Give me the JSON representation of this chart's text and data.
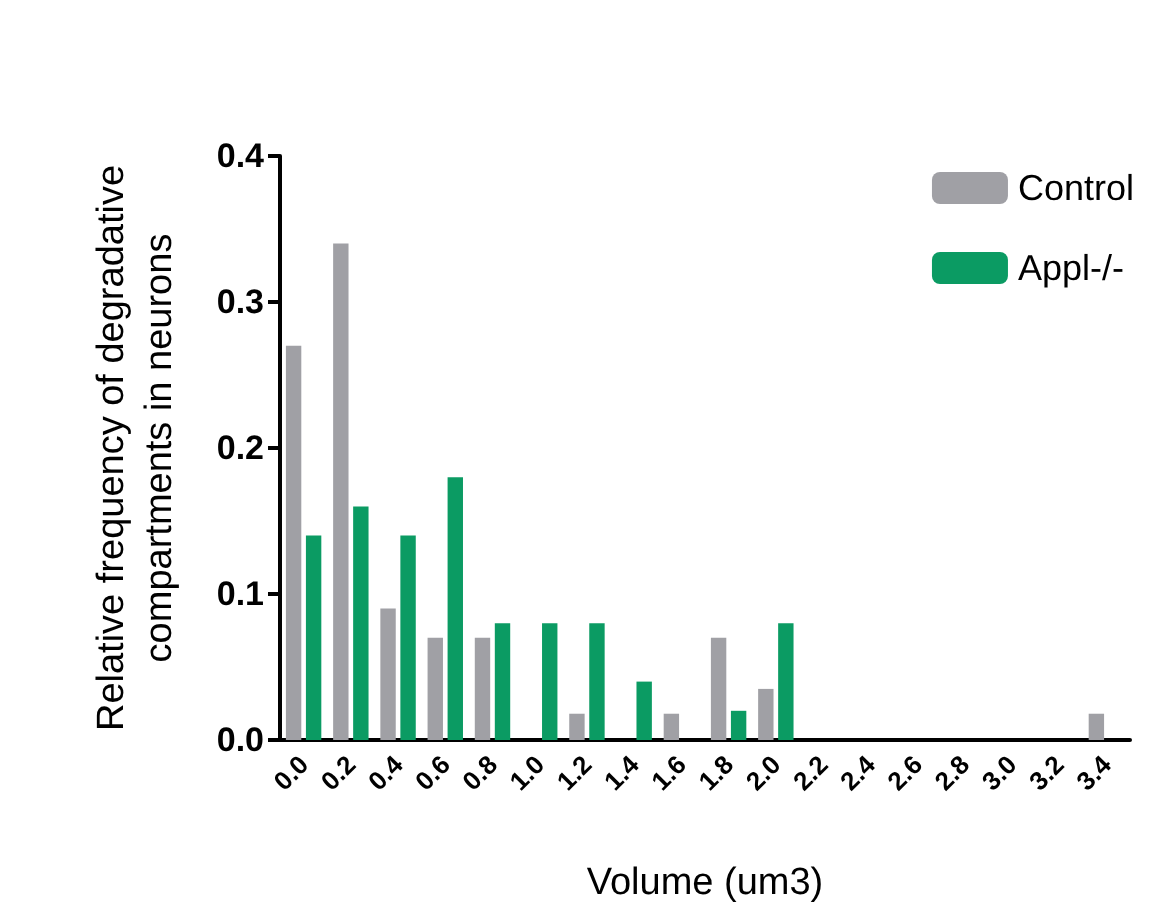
{
  "chart_data": {
    "type": "bar",
    "xlabel": "Volume (um3)",
    "ylabel": "Relative frequency of degradative\ncompartments in neurons",
    "categories": [
      "0.0",
      "0.2",
      "0.4",
      "0.6",
      "0.8",
      "1.0",
      "1.2",
      "1.4",
      "1.6",
      "1.8",
      "2.0",
      "2.2",
      "2.4",
      "2.6",
      "2.8",
      "3.0",
      "3.2",
      "3.4"
    ],
    "series": [
      {
        "name": "Control",
        "color": "#a0a0a5",
        "values": [
          0.27,
          0.34,
          0.09,
          0.07,
          0.07,
          0,
          0.018,
          0,
          0.018,
          0.07,
          0.035,
          0,
          0,
          0,
          0,
          0,
          0,
          0.018
        ]
      },
      {
        "name": "Appl-/-",
        "color": "#0b9b63",
        "values": [
          0.14,
          0.16,
          0.14,
          0.18,
          0.08,
          0.08,
          0.08,
          0.04,
          0,
          0.02,
          0.08,
          0,
          0,
          0,
          0,
          0,
          0,
          0
        ]
      }
    ],
    "ylim": [
      0,
      0.4
    ],
    "yticks": [
      {
        "value": 0,
        "label": "0.0"
      },
      0.1,
      0.2,
      0.3,
      0.4
    ],
    "grid": false,
    "legend": "top right"
  }
}
